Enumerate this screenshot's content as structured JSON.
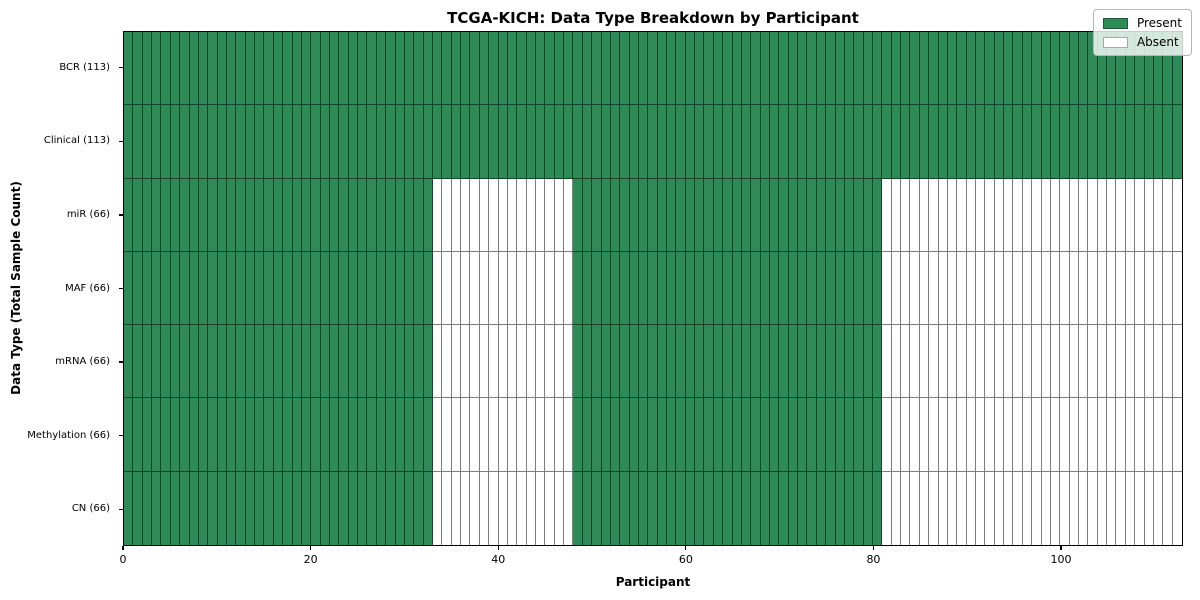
{
  "chart_data": {
    "type": "heatmap",
    "title": "TCGA-KICH: Data Type Breakdown by Participant",
    "xlabel": "Participant",
    "ylabel": "Data Type (Total Sample Count)",
    "x_range": [
      0,
      113
    ],
    "n_participants": 113,
    "xticks": [
      0,
      20,
      40,
      60,
      80,
      100
    ],
    "grid": "cell-borders",
    "legend_position": "upper-right",
    "legend": [
      {
        "label": "Present",
        "color": "#2e8b57"
      },
      {
        "label": "Absent",
        "color": "#ffffff"
      }
    ],
    "colors": {
      "present": "#2e8b57",
      "absent": "#ffffff",
      "grid": "rgba(0,0,0,0.5)",
      "spine": "#000000"
    },
    "rows": [
      {
        "label": "BCR (113)",
        "data_type": "BCR",
        "total_samples": 113,
        "present_ranges": [
          [
            0,
            113
          ]
        ]
      },
      {
        "label": "Clinical (113)",
        "data_type": "Clinical",
        "total_samples": 113,
        "present_ranges": [
          [
            0,
            113
          ]
        ]
      },
      {
        "label": "miR (66)",
        "data_type": "miR",
        "total_samples": 66,
        "present_ranges": [
          [
            0,
            33
          ],
          [
            48,
            81
          ]
        ]
      },
      {
        "label": "MAF (66)",
        "data_type": "MAF",
        "total_samples": 66,
        "present_ranges": [
          [
            0,
            33
          ],
          [
            48,
            81
          ]
        ]
      },
      {
        "label": "mRNA (66)",
        "data_type": "mRNA",
        "total_samples": 66,
        "present_ranges": [
          [
            0,
            33
          ],
          [
            48,
            81
          ]
        ]
      },
      {
        "label": "Methylation (66)",
        "data_type": "Methylation",
        "total_samples": 66,
        "present_ranges": [
          [
            0,
            33
          ],
          [
            48,
            81
          ]
        ]
      },
      {
        "label": "CN (66)",
        "data_type": "CN",
        "total_samples": 66,
        "present_ranges": [
          [
            0,
            33
          ],
          [
            48,
            81
          ]
        ]
      }
    ]
  }
}
